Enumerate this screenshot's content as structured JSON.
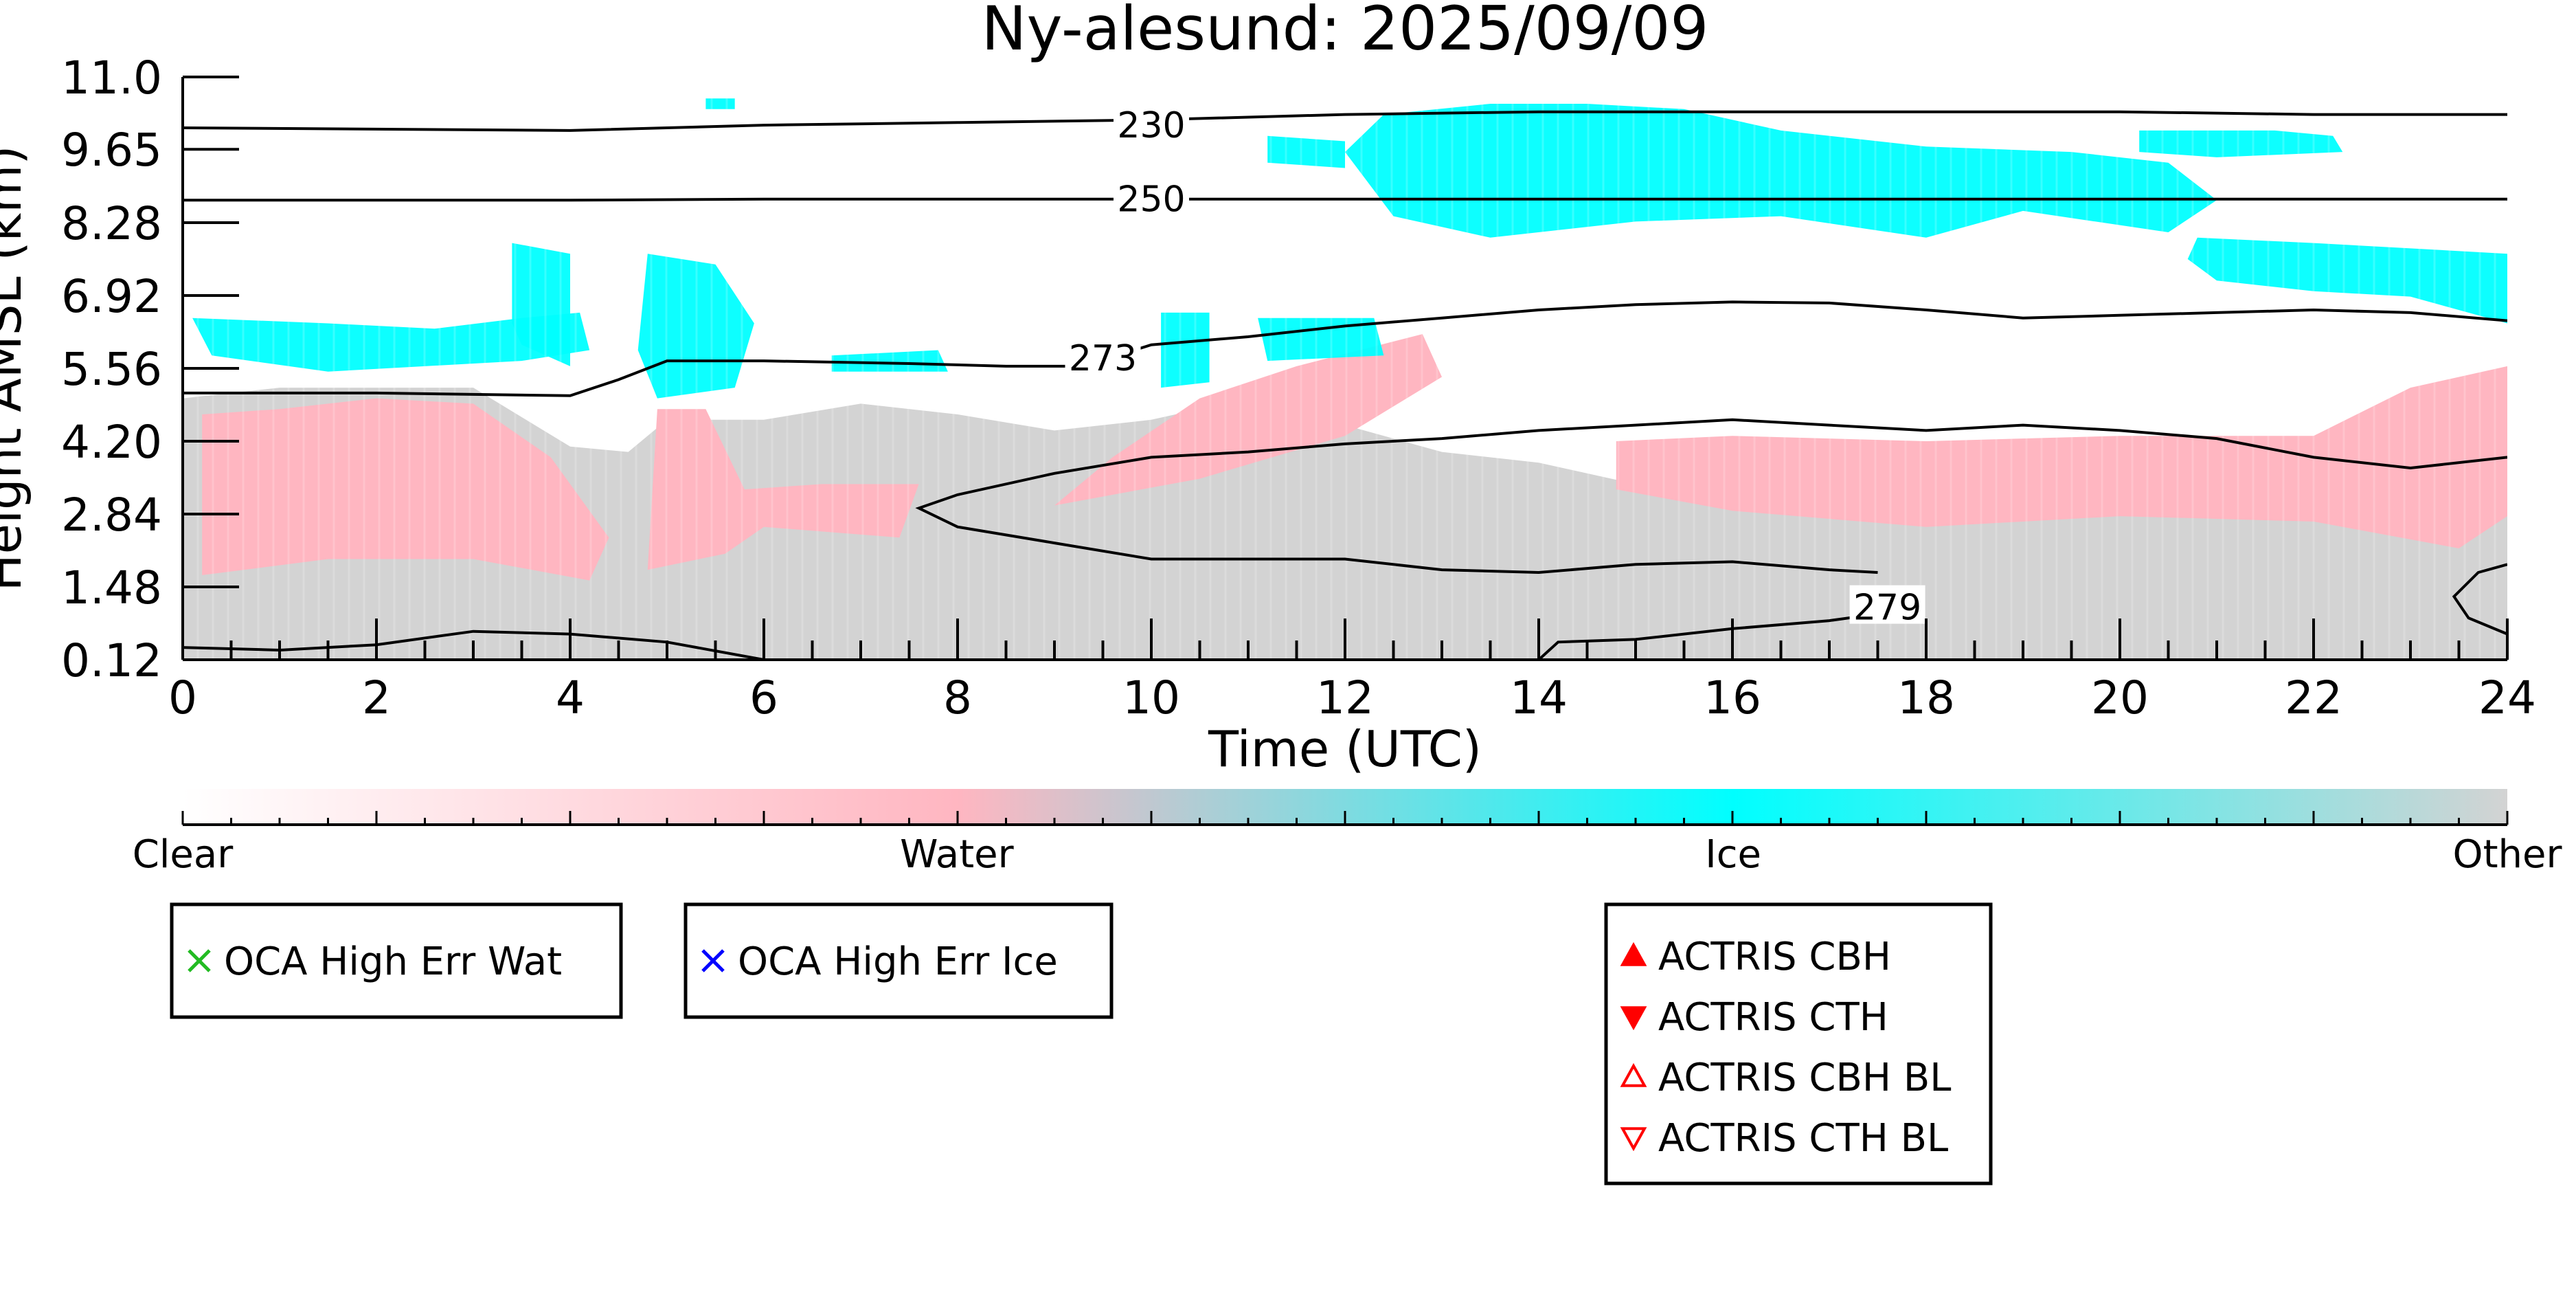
{
  "chart_data": {
    "type": "heatmap",
    "title": "Ny-alesund: 2025/09/09",
    "xlabel": "Time (UTC)",
    "ylabel": "Height AMSL (km)",
    "xlim": [
      0,
      24
    ],
    "ylim": [
      0.12,
      11.0
    ],
    "x_ticks": [
      "0",
      "2",
      "4",
      "6",
      "8",
      "10",
      "12",
      "14",
      "16",
      "18",
      "20",
      "22",
      "24"
    ],
    "y_ticks": [
      "0.12",
      "1.48",
      "2.84",
      "4.20",
      "5.56",
      "6.92",
      "8.28",
      "9.65",
      "11.0"
    ],
    "grid": false,
    "classes": [
      "Clear",
      "Water",
      "Ice",
      "Other"
    ],
    "colors": {
      "clear": "#ffffff",
      "water": "#ffb6c1",
      "ice": "#00ffff",
      "other": "#d3d3d3",
      "contour": "#000000",
      "oca_water_marker": "#22bb22",
      "oca_ice_marker": "#0000ff",
      "actris_marker": "#ff0000"
    },
    "contours": [
      {
        "label": "230",
        "label_at": [
          10.0,
          10.1
        ],
        "points": [
          [
            0,
            10.05
          ],
          [
            4,
            10.0
          ],
          [
            6,
            10.1
          ],
          [
            8,
            10.15
          ],
          [
            10,
            10.2
          ],
          [
            12,
            10.3
          ],
          [
            14,
            10.35
          ],
          [
            16,
            10.35
          ],
          [
            18,
            10.35
          ],
          [
            20,
            10.35
          ],
          [
            22,
            10.3
          ],
          [
            24,
            10.3
          ]
        ]
      },
      {
        "label": "250",
        "label_at": [
          10.0,
          8.72
        ],
        "points": [
          [
            0,
            8.7
          ],
          [
            4,
            8.7
          ],
          [
            6,
            8.72
          ],
          [
            8,
            8.72
          ],
          [
            10,
            8.72
          ],
          [
            12,
            8.72
          ],
          [
            14,
            8.72
          ],
          [
            16,
            8.72
          ],
          [
            18,
            8.72
          ],
          [
            20,
            8.72
          ],
          [
            22,
            8.72
          ],
          [
            24,
            8.72
          ]
        ]
      },
      {
        "label": "273",
        "label_at": [
          9.5,
          5.75
        ],
        "points": [
          [
            0,
            5.1
          ],
          [
            2,
            5.1
          ],
          [
            4,
            5.05
          ],
          [
            4.5,
            5.35
          ],
          [
            5,
            5.7
          ],
          [
            6,
            5.7
          ],
          [
            7.5,
            5.65
          ],
          [
            8.5,
            5.6
          ],
          [
            9.3,
            5.6
          ],
          [
            10,
            6.0
          ],
          [
            11,
            6.15
          ],
          [
            12,
            6.35
          ],
          [
            13,
            6.5
          ],
          [
            14,
            6.65
          ],
          [
            15,
            6.75
          ],
          [
            16,
            6.8
          ],
          [
            17,
            6.78
          ],
          [
            18,
            6.65
          ],
          [
            19,
            6.5
          ],
          [
            20,
            6.55
          ],
          [
            21,
            6.6
          ],
          [
            22,
            6.65
          ],
          [
            23,
            6.6
          ],
          [
            24,
            6.45
          ]
        ]
      },
      {
        "label": "",
        "points": [
          [
            24,
            3.9
          ],
          [
            23,
            3.7
          ],
          [
            22,
            3.9
          ],
          [
            21,
            4.25
          ],
          [
            20,
            4.4
          ],
          [
            19,
            4.5
          ],
          [
            18,
            4.4
          ],
          [
            17,
            4.5
          ],
          [
            16,
            4.6
          ],
          [
            15,
            4.5
          ],
          [
            14,
            4.4
          ],
          [
            13,
            4.25
          ],
          [
            12,
            4.15
          ],
          [
            11,
            4.0
          ],
          [
            10,
            3.9
          ],
          [
            9,
            3.6
          ],
          [
            8,
            3.2
          ],
          [
            7.6,
            2.95
          ],
          [
            8,
            2.6
          ],
          [
            9,
            2.3
          ],
          [
            10,
            2.0
          ],
          [
            11,
            2.0
          ],
          [
            12,
            2.0
          ],
          [
            13,
            1.8
          ],
          [
            14,
            1.75
          ],
          [
            15,
            1.9
          ],
          [
            16,
            1.95
          ],
          [
            17,
            1.8
          ],
          [
            17.5,
            1.75
          ]
        ]
      },
      {
        "label": "279",
        "label_at": [
          17.6,
          1.1
        ],
        "points": [
          [
            14,
            0.12
          ],
          [
            14.2,
            0.45
          ],
          [
            15,
            0.5
          ],
          [
            16,
            0.7
          ],
          [
            17,
            0.85
          ],
          [
            17.4,
            0.95
          ]
        ]
      },
      {
        "label": "",
        "points": [
          [
            0,
            0.35
          ],
          [
            1,
            0.3
          ],
          [
            2,
            0.4
          ],
          [
            3,
            0.65
          ],
          [
            4,
            0.6
          ],
          [
            5,
            0.45
          ],
          [
            6,
            0.12
          ]
        ]
      },
      {
        "label": "",
        "points": [
          [
            24,
            1.9
          ],
          [
            23.7,
            1.75
          ],
          [
            23.45,
            1.3
          ],
          [
            23.6,
            0.9
          ],
          [
            24,
            0.6
          ]
        ]
      }
    ],
    "cloud_regions": [
      {
        "class": "other",
        "points": [
          [
            0,
            0.12
          ],
          [
            24,
            0.12
          ],
          [
            24,
            5.4
          ],
          [
            23,
            4.6
          ],
          [
            22,
            4.3
          ],
          [
            21,
            3.9
          ],
          [
            20,
            3.8
          ],
          [
            19,
            3.5
          ],
          [
            18,
            3.6
          ],
          [
            17,
            3.4
          ],
          [
            16,
            3.5
          ],
          [
            15,
            3.4
          ],
          [
            14,
            3.8
          ],
          [
            13,
            4.0
          ],
          [
            12,
            4.5
          ],
          [
            11,
            5.0
          ],
          [
            10,
            4.6
          ],
          [
            9,
            4.4
          ],
          [
            8,
            4.7
          ],
          [
            7,
            4.9
          ],
          [
            6,
            4.6
          ],
          [
            5,
            4.6
          ],
          [
            4.6,
            4.0
          ],
          [
            4,
            4.1
          ],
          [
            3,
            5.2
          ],
          [
            2,
            5.2
          ],
          [
            1,
            5.2
          ],
          [
            0,
            5.0
          ]
        ]
      },
      {
        "class": "water",
        "points": [
          [
            0.2,
            1.7
          ],
          [
            1.5,
            2.0
          ],
          [
            3,
            2.0
          ],
          [
            4.2,
            1.6
          ],
          [
            4.4,
            2.4
          ],
          [
            3.8,
            3.9
          ],
          [
            3,
            4.9
          ],
          [
            2,
            5.0
          ],
          [
            1,
            4.8
          ],
          [
            0.2,
            4.7
          ]
        ]
      },
      {
        "class": "water",
        "points": [
          [
            4.8,
            1.8
          ],
          [
            5.6,
            2.1
          ],
          [
            6,
            2.6
          ],
          [
            7.4,
            2.4
          ],
          [
            7.6,
            3.4
          ],
          [
            6.6,
            3.4
          ],
          [
            5.8,
            3.3
          ],
          [
            5.4,
            4.8
          ],
          [
            4.9,
            4.8
          ]
        ]
      },
      {
        "class": "water",
        "points": [
          [
            9,
            3.0
          ],
          [
            10.5,
            3.5
          ],
          [
            12,
            4.3
          ],
          [
            13,
            5.4
          ],
          [
            12.8,
            6.2
          ],
          [
            11.5,
            5.6
          ],
          [
            10.5,
            5.0
          ],
          [
            9.6,
            3.9
          ]
        ]
      },
      {
        "class": "water",
        "points": [
          [
            14.8,
            3.3
          ],
          [
            16,
            2.9
          ],
          [
            18,
            2.6
          ],
          [
            20,
            2.8
          ],
          [
            22,
            2.7
          ],
          [
            23.5,
            2.2
          ],
          [
            24,
            2.8
          ],
          [
            24,
            5.6
          ],
          [
            23,
            5.2
          ],
          [
            22,
            4.3
          ],
          [
            20,
            4.3
          ],
          [
            18,
            4.2
          ],
          [
            16,
            4.3
          ],
          [
            14.8,
            4.2
          ]
        ]
      },
      {
        "class": "ice",
        "points": [
          [
            0.1,
            6.5
          ],
          [
            1.5,
            6.4
          ],
          [
            2.6,
            6.3
          ],
          [
            3.5,
            6.5
          ],
          [
            4.1,
            6.6
          ],
          [
            4.2,
            5.9
          ],
          [
            3.5,
            5.7
          ],
          [
            2.5,
            5.6
          ],
          [
            1.5,
            5.5
          ],
          [
            0.3,
            5.8
          ]
        ]
      },
      {
        "class": "ice",
        "points": [
          [
            3.4,
            7.9
          ],
          [
            4.0,
            7.7
          ],
          [
            4.0,
            5.6
          ],
          [
            3.5,
            6.0
          ],
          [
            3.4,
            6.4
          ]
        ]
      },
      {
        "class": "ice",
        "points": [
          [
            4.8,
            7.7
          ],
          [
            5.5,
            7.5
          ],
          [
            5.9,
            6.4
          ],
          [
            5.7,
            5.2
          ],
          [
            4.9,
            5.0
          ],
          [
            4.7,
            5.9
          ]
        ]
      },
      {
        "class": "ice",
        "points": [
          [
            6.7,
            5.8
          ],
          [
            7.8,
            5.9
          ],
          [
            7.9,
            5.5
          ],
          [
            6.7,
            5.5
          ]
        ]
      },
      {
        "class": "ice",
        "points": [
          [
            10.1,
            6.6
          ],
          [
            10.6,
            6.6
          ],
          [
            10.6,
            5.3
          ],
          [
            10.1,
            5.2
          ]
        ]
      },
      {
        "class": "ice",
        "points": [
          [
            11.1,
            6.5
          ],
          [
            12.3,
            6.5
          ],
          [
            12.4,
            5.8
          ],
          [
            11.2,
            5.7
          ]
        ]
      },
      {
        "class": "ice",
        "points": [
          [
            12.0,
            9.6
          ],
          [
            12.4,
            10.3
          ],
          [
            13.5,
            10.5
          ],
          [
            14.5,
            10.5
          ],
          [
            15.5,
            10.4
          ],
          [
            16.5,
            10.0
          ],
          [
            18,
            9.7
          ],
          [
            19.5,
            9.6
          ],
          [
            20.5,
            9.4
          ],
          [
            21,
            8.7
          ],
          [
            20.5,
            8.1
          ],
          [
            19,
            8.5
          ],
          [
            18,
            8.0
          ],
          [
            16.5,
            8.4
          ],
          [
            15,
            8.3
          ],
          [
            13.5,
            8.0
          ],
          [
            12.5,
            8.4
          ]
        ]
      },
      {
        "class": "ice",
        "points": [
          [
            20.2,
            10.0
          ],
          [
            21.6,
            10.0
          ],
          [
            22.2,
            9.9
          ],
          [
            22.3,
            9.6
          ],
          [
            21.0,
            9.5
          ],
          [
            20.2,
            9.6
          ]
        ]
      },
      {
        "class": "ice",
        "points": [
          [
            20.8,
            8.0
          ],
          [
            22.0,
            7.9
          ],
          [
            23.0,
            7.8
          ],
          [
            24.0,
            7.7
          ],
          [
            24.0,
            6.4
          ],
          [
            23.0,
            6.9
          ],
          [
            22.0,
            7.0
          ],
          [
            21.0,
            7.2
          ],
          [
            20.7,
            7.6
          ]
        ]
      },
      {
        "class": "ice",
        "points": [
          [
            11.2,
            9.9
          ],
          [
            12.0,
            9.8
          ],
          [
            12.0,
            9.3
          ],
          [
            11.2,
            9.4
          ]
        ]
      },
      {
        "class": "ice",
        "points": [
          [
            5.4,
            10.6
          ],
          [
            5.7,
            10.6
          ],
          [
            5.7,
            10.4
          ],
          [
            5.4,
            10.4
          ]
        ]
      }
    ],
    "colorbar": {
      "labels": [
        "Clear",
        "Water",
        "Ice",
        "Other"
      ],
      "label_positions": [
        0,
        0.333,
        0.667,
        1.0
      ]
    },
    "legends": [
      {
        "entries": [
          {
            "marker": "x",
            "color": "#22bb22",
            "label": "OCA High Err Wat"
          }
        ]
      },
      {
        "entries": [
          {
            "marker": "x",
            "color": "#0000ff",
            "label": "OCA High Err Ice"
          }
        ]
      },
      {
        "entries": [
          {
            "marker": "triangle-up-filled",
            "color": "#ff0000",
            "label": "ACTRIS CBH"
          },
          {
            "marker": "triangle-down-filled",
            "color": "#ff0000",
            "label": "ACTRIS CTH"
          },
          {
            "marker": "triangle-up-open",
            "color": "#ff0000",
            "label": "ACTRIS CBH BL"
          },
          {
            "marker": "triangle-down-open",
            "color": "#ff0000",
            "label": "ACTRIS CTH BL"
          }
        ]
      }
    ]
  }
}
